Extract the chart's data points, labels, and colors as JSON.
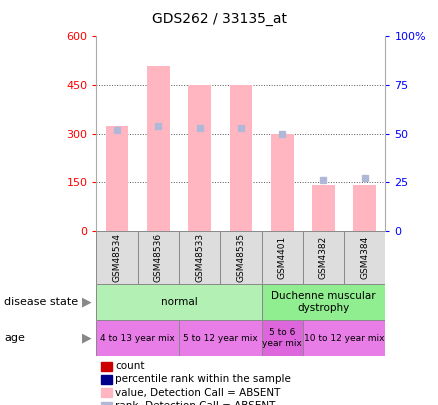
{
  "title": "GDS262 / 33135_at",
  "samples": [
    "GSM48534",
    "GSM48536",
    "GSM48533",
    "GSM48535",
    "GSM4401",
    "GSM4382",
    "GSM4384"
  ],
  "absent_bar_values": [
    325,
    510,
    450,
    450,
    298,
    140,
    143
  ],
  "absent_rank_values": [
    52,
    54,
    53,
    53,
    50,
    26,
    27
  ],
  "ylim_left": [
    0,
    600
  ],
  "ylim_right": [
    0,
    100
  ],
  "yticks_left": [
    0,
    150,
    300,
    450,
    600
  ],
  "yticks_right": [
    0,
    25,
    50,
    75,
    100
  ],
  "ytick_labels_left": [
    "0",
    "150",
    "300",
    "450",
    "600"
  ],
  "ytick_labels_right": [
    "0",
    "25",
    "50",
    "75",
    "100%"
  ],
  "bar_color": "#ffb6c1",
  "rank_color": "#b0b8d8",
  "disease_groups": [
    {
      "label": "normal",
      "start": 0,
      "end": 4,
      "color": "#b3f0b3"
    },
    {
      "label": "Duchenne muscular\ndystrophy",
      "start": 4,
      "end": 7,
      "color": "#90ee90"
    }
  ],
  "age_groups": [
    {
      "label": "4 to 13 year mix",
      "start": 0,
      "end": 2,
      "color": "#e87de8"
    },
    {
      "label": "5 to 12 year mix",
      "start": 2,
      "end": 4,
      "color": "#e87de8"
    },
    {
      "label": "5 to 6\nyear mix",
      "start": 4,
      "end": 5,
      "color": "#dd66dd"
    },
    {
      "label": "10 to 12 year mix",
      "start": 5,
      "end": 7,
      "color": "#e87de8"
    }
  ],
  "legend_items": [
    {
      "label": "count",
      "color": "#cc0000"
    },
    {
      "label": "percentile rank within the sample",
      "color": "#00008b"
    },
    {
      "label": "value, Detection Call = ABSENT",
      "color": "#ffb6c1"
    },
    {
      "label": "rank, Detection Call = ABSENT",
      "color": "#b0b8d8"
    }
  ]
}
